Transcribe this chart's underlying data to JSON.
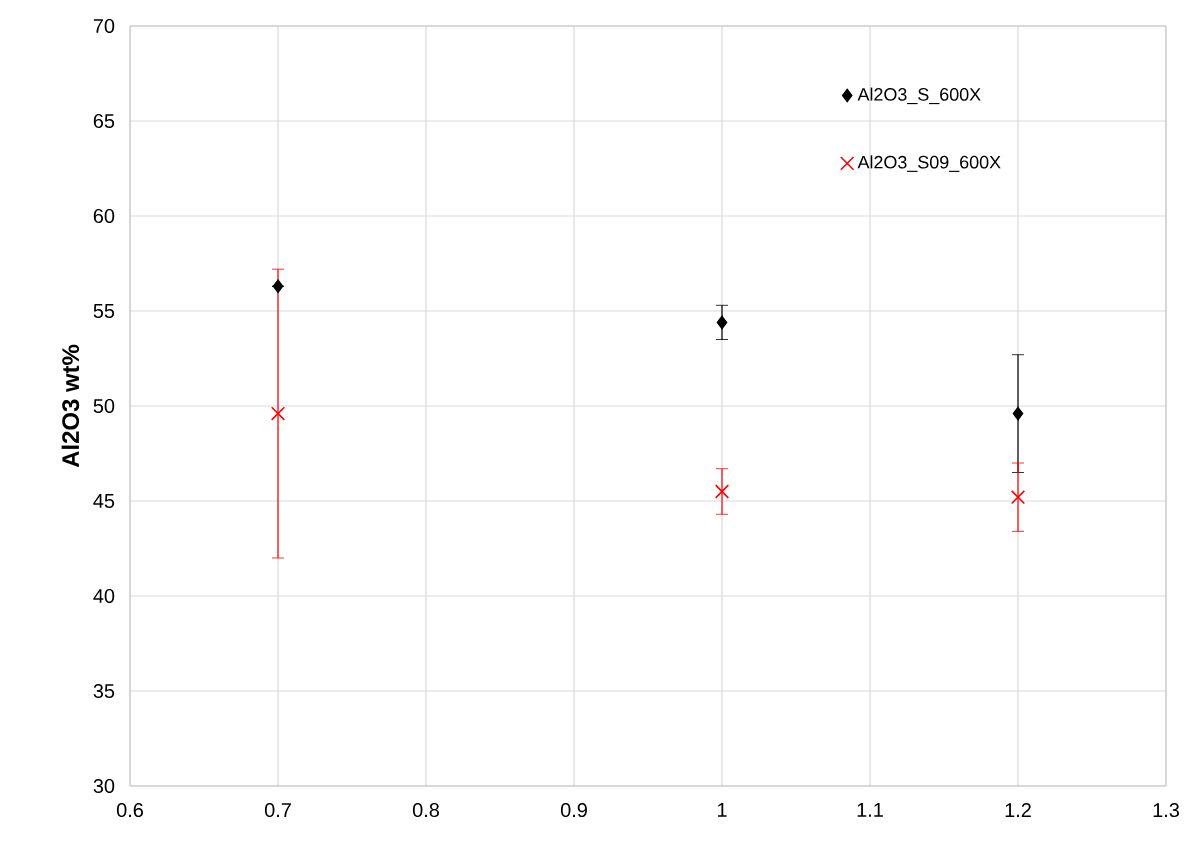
{
  "chart_data": {
    "type": "scatter",
    "ylabel": "Al2O3 wt%",
    "x": [
      0.7,
      1.0,
      1.2
    ],
    "series": [
      {
        "name": "Al2O3_S_600X",
        "color": "#000000",
        "marker": "diamond",
        "values": [
          56.3,
          54.4,
          49.6
        ],
        "errors": [
          null,
          0.9,
          3.1
        ]
      },
      {
        "name": "Al2O3_S09_600X",
        "color": "#ff0000",
        "marker": "cross",
        "values": [
          49.6,
          45.5,
          45.2
        ],
        "errors": [
          7.6,
          1.2,
          1.8
        ]
      }
    ],
    "xlim": [
      0.6,
      1.3
    ],
    "xticks": [
      0.6,
      0.7,
      0.8,
      0.9,
      1,
      1.1,
      1.2,
      1.3
    ],
    "ylim": [
      30,
      70
    ],
    "yticks": [
      30,
      35,
      40,
      45,
      50,
      55,
      60,
      65,
      70
    ],
    "grid": true,
    "legend": "top right"
  }
}
